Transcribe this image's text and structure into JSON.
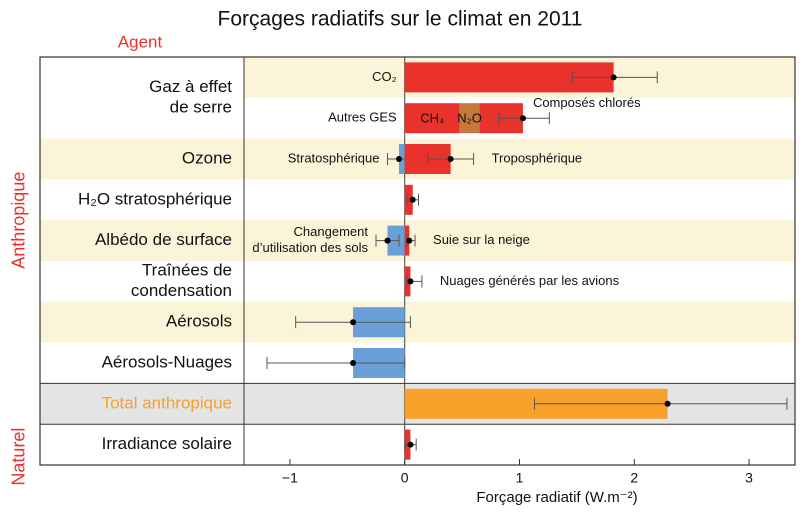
{
  "chart_data": {
    "type": "forcing-bars",
    "title": "Forçages radiatifs sur le climat en 2011",
    "agent_header": "Agent",
    "xlabel": "Forçage radiatif (W.m⁻²)",
    "xlim": [
      -1.4,
      3.4
    ],
    "xticks": [
      {
        "value": -1,
        "label": "−1"
      },
      0,
      1,
      2,
      3
    ],
    "sections": [
      {
        "group": "Anthropique",
        "agents": [
          {
            "label": [
              "Gaz à effet",
              "de serre"
            ],
            "rows": [
              [
                {
                  "value": 1.82,
                  "low": 1.46,
                  "high": 2.2,
                  "color": "#e8322b",
                  "label": "CO₂",
                  "label_pos": "left"
                }
              ],
              [
                {
                  "segments": [
                    {
                      "value": 0.48,
                      "color": "#e8322b",
                      "label": "CH₄",
                      "label_pos": "inside"
                    },
                    {
                      "value": 0.17,
                      "color": "#c47a3a",
                      "label": "N₂O",
                      "label_pos": "inside"
                    },
                    {
                      "value": 0.38,
                      "color": "#e8322b",
                      "label": "Composés chlorés",
                      "label_pos": "above"
                    }
                  ],
                  "total": 1.03,
                  "low": 0.82,
                  "high": 1.26,
                  "label": "Autres GES",
                  "label_pos": "left"
                }
              ]
            ]
          },
          {
            "label": [
              "Ozone"
            ],
            "rows": [
              [
                {
                  "value": -0.05,
                  "low": -0.15,
                  "high": 0.05,
                  "color": "#6a9fd8",
                  "label": "Stratosphérique",
                  "label_pos": "left"
                },
                {
                  "value": 0.4,
                  "low": 0.2,
                  "high": 0.6,
                  "color": "#e8322b",
                  "label": "Troposphérique",
                  "label_pos": "right"
                }
              ]
            ]
          },
          {
            "label": [
              "H₂O stratosphérique"
            ],
            "rows": [
              [
                {
                  "value": 0.07,
                  "low": 0.02,
                  "high": 0.12,
                  "color": "#e8322b"
                }
              ]
            ]
          },
          {
            "label": [
              "Albédo de surface"
            ],
            "rows": [
              [
                {
                  "value": -0.15,
                  "low": -0.25,
                  "high": -0.05,
                  "color": "#6a9fd8",
                  "label": [
                    "Changement",
                    "d’utilisation des sols"
                  ],
                  "label_pos": "left"
                },
                {
                  "value": 0.04,
                  "low": 0.02,
                  "high": 0.09,
                  "color": "#e8322b",
                  "label": "Suie sur la neige",
                  "label_pos": "right"
                }
              ]
            ]
          },
          {
            "label": [
              "Traînées de",
              "condensation"
            ],
            "rows": [
              [
                {
                  "value": 0.05,
                  "low": 0.02,
                  "high": 0.15,
                  "color": "#e8322b",
                  "label": "Nuages générés par les avions",
                  "label_pos": "right"
                }
              ]
            ]
          },
          {
            "label": [
              "Aérosols"
            ],
            "rows": [
              [
                {
                  "value": -0.45,
                  "low": -0.95,
                  "high": 0.05,
                  "color": "#6a9fd8"
                }
              ]
            ]
          },
          {
            "label": [
              "Aérosols-Nuages"
            ],
            "rows": [
              [
                {
                  "value": -0.45,
                  "low": -1.2,
                  "high": 0.0,
                  "color": "#6a9fd8"
                }
              ]
            ]
          }
        ]
      },
      {
        "agents": [
          {
            "label": [
              "Total anthropique"
            ],
            "highlight": true,
            "rows": [
              [
                {
                  "value": 2.29,
                  "low": 1.13,
                  "high": 3.33,
                  "color": "#f7a12a"
                }
              ]
            ]
          }
        ]
      },
      {
        "group": "Naturel",
        "agents": [
          {
            "label": [
              "Irradiance solaire"
            ],
            "rows": [
              [
                {
                  "value": 0.05,
                  "low": 0.0,
                  "high": 0.1,
                  "color": "#e8322b"
                }
              ]
            ]
          }
        ]
      }
    ]
  }
}
